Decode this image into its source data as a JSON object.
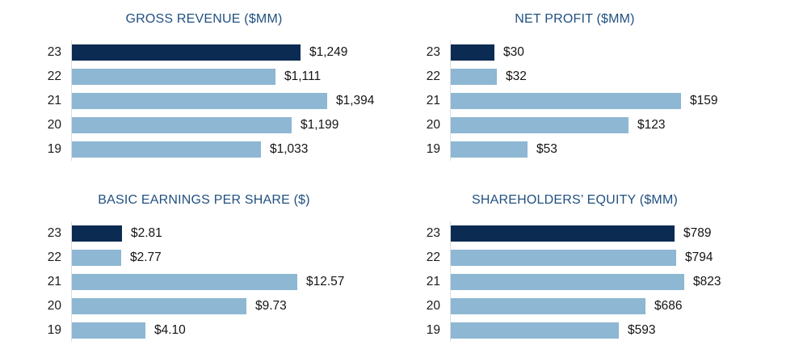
{
  "colors": {
    "background": "#ffffff",
    "bar_current": "#0c2b52",
    "bar_prior": "#8db7d3",
    "title_blue": "#215081",
    "label_text": "#1b1b1b",
    "axis_line": "#d9dfe5"
  },
  "chart_data": [
    {
      "type": "bar",
      "orientation": "horizontal",
      "title": "GROSS REVENUE ($MM)",
      "categories": [
        "23",
        "22",
        "21",
        "20",
        "19"
      ],
      "values": [
        1249,
        1111,
        1394,
        1199,
        1033
      ],
      "value_labels": [
        "$1,249",
        "$1,111",
        "$1,394",
        "$1,199",
        "$1,033"
      ],
      "highlight_index": 0,
      "xlabel": "",
      "ylabel": "",
      "grid": false,
      "legend": false
    },
    {
      "type": "bar",
      "orientation": "horizontal",
      "title": "NET PROFIT ($MM)",
      "categories": [
        "23",
        "22",
        "21",
        "20",
        "19"
      ],
      "values": [
        30,
        32,
        159,
        123,
        53
      ],
      "value_labels": [
        "$30",
        "$32",
        "$159",
        "$123",
        "$53"
      ],
      "highlight_index": 0,
      "xlabel": "",
      "ylabel": "",
      "grid": false,
      "legend": false
    },
    {
      "type": "bar",
      "orientation": "horizontal",
      "title": "BASIC EARNINGS PER SHARE ($)",
      "categories": [
        "23",
        "22",
        "21",
        "20",
        "19"
      ],
      "values": [
        2.81,
        2.77,
        12.57,
        9.73,
        4.1
      ],
      "value_labels": [
        "$2.81",
        "$2.77",
        "$12.57",
        "$9.73",
        "$4.10"
      ],
      "highlight_index": 0,
      "xlabel": "",
      "ylabel": "",
      "grid": false,
      "legend": false
    },
    {
      "type": "bar",
      "orientation": "horizontal",
      "title": "SHAREHOLDERS’ EQUITY ($MM)",
      "categories": [
        "23",
        "22",
        "21",
        "20",
        "19"
      ],
      "values": [
        789,
        794,
        823,
        686,
        593
      ],
      "value_labels": [
        "$789",
        "$794",
        "$823",
        "$686",
        "$593"
      ],
      "highlight_index": 0,
      "xlabel": "",
      "ylabel": "",
      "grid": false,
      "legend": false
    }
  ]
}
